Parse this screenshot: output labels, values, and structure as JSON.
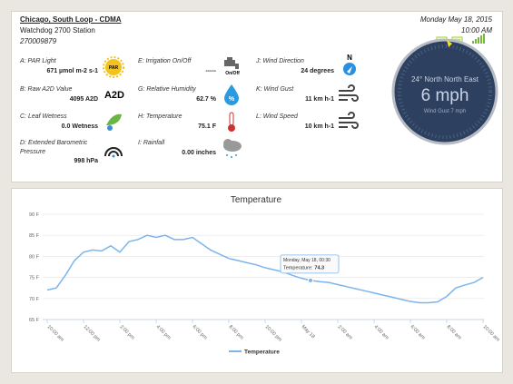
{
  "header": {
    "station": "Chicago, South Loop - CDMA",
    "model": "Watchdog 2700 Station",
    "serial": "270009879",
    "date": "Monday May 18, 2015",
    "time": "10:00 AM"
  },
  "sensors": [
    {
      "label": "A: PAR Light",
      "value": "671 µmol m-2 s-1",
      "icon_text": "PAR"
    },
    {
      "label": "B: Raw A2D Value",
      "value": "4095 A2D",
      "icon_text": "A2D"
    },
    {
      "label": "C: Leaf Wetness",
      "value": "0.0 Wetness"
    },
    {
      "label": "D: Extended Barometric Pressure",
      "value": "998 hPa"
    },
    {
      "label": "E: Irrigation On/Off",
      "value": "-----",
      "icon_text": "On/Off"
    },
    {
      "label": "G: Relative Humidity",
      "value": "62.7 %",
      "icon_text": "%"
    },
    {
      "label": "H: Temperature",
      "value": "75.1 F"
    },
    {
      "label": "I: Rainfall",
      "value": "0.00 inches"
    },
    {
      "label": "J: Wind Direction",
      "value": "24 degrees",
      "icon_text": "N"
    },
    {
      "label": "K: Wind Gust",
      "value": "11 km h-1"
    },
    {
      "label": "L: Wind Speed",
      "value": "10 km h-1"
    }
  ],
  "compass": {
    "direction": "24° North North East",
    "speed": "6 mph",
    "gust": "Wind Gust 7 mph"
  },
  "chart": {
    "type": "line",
    "title": "Temperature",
    "categories": [
      "10:00 am",
      null,
      null,
      null,
      "12:00 pm",
      null,
      null,
      null,
      "2:00 pm",
      null,
      null,
      null,
      "4:00 pm",
      null,
      null,
      null,
      "6:00 pm",
      null,
      null,
      null,
      "8:00 pm",
      null,
      null,
      null,
      "10:00 pm",
      null,
      null,
      null,
      "May 18",
      null,
      null,
      null,
      "2:00 am",
      null,
      null,
      null,
      "4:00 am",
      null,
      null,
      null,
      "6:00 am",
      null,
      null,
      null,
      "8:00 am",
      null,
      null,
      null,
      "10:00 am"
    ],
    "series": [
      {
        "name": "Temperature",
        "color": "#7cb5ec",
        "values": [
          72,
          72.5,
          75.5,
          79,
          81,
          81.5,
          81.3,
          82.5,
          81,
          83.5,
          84,
          85,
          84.5,
          85,
          84,
          84,
          84.5,
          83,
          81.5,
          80.5,
          79.5,
          79,
          78.5,
          78,
          77.3,
          76.8,
          76.3,
          75.5,
          74.8,
          74.3,
          74,
          73.8,
          73.3,
          72.8,
          72.3,
          71.8,
          71.3,
          70.8,
          70.3,
          69.8,
          69.3,
          69,
          69,
          69.2,
          70.5,
          72.5,
          73.2,
          73.8,
          75
        ]
      }
    ],
    "ylim": [
      65,
      90
    ],
    "yticks": [
      {
        "value": 65,
        "label": "65 F"
      },
      {
        "value": 70,
        "label": "70 F"
      },
      {
        "value": 75,
        "label": "75 F"
      },
      {
        "value": 80,
        "label": "80 F"
      },
      {
        "value": 85,
        "label": "85 F"
      },
      {
        "value": 90,
        "label": "90 F"
      }
    ],
    "grid": true,
    "tooltip": {
      "title": "Monday, May 18, 00:30",
      "label": "Temperature:",
      "point": 29
    }
  }
}
